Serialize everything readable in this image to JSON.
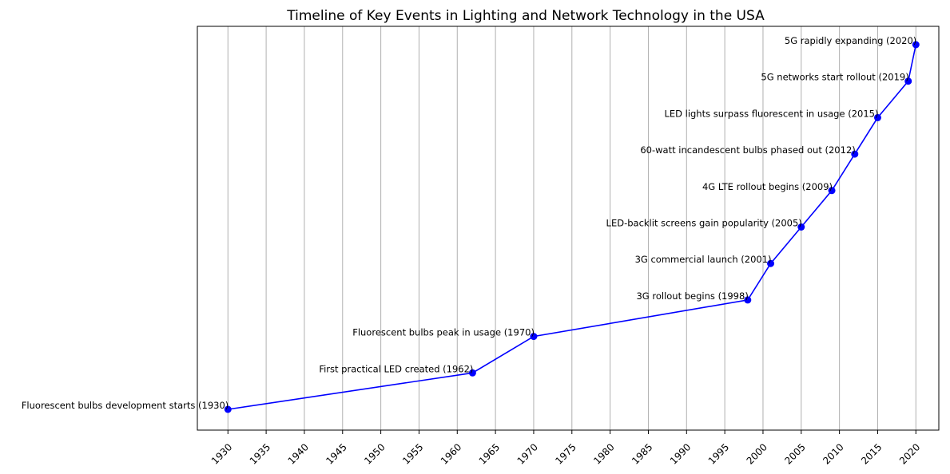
{
  "chart_data": {
    "type": "line",
    "title": "Timeline of Key Events in Lighting and Network Technology in the USA",
    "xlabel": "",
    "ylabel": "",
    "xlim": [
      1926,
      2023
    ],
    "x_ticks": [
      "1930",
      "1935",
      "1940",
      "1945",
      "1950",
      "1955",
      "1960",
      "1965",
      "1970",
      "1975",
      "1980",
      "1985",
      "1990",
      "1995",
      "2000",
      "2005",
      "2010",
      "2015",
      "2020"
    ],
    "grid": "vertical",
    "legend": "none",
    "line_color": "#0000ff",
    "grid_color": "#b0b0b0",
    "series": [
      {
        "points": [
          {
            "x": 1930,
            "y": 1,
            "label": "Fluorescent bulbs development starts (1930)"
          },
          {
            "x": 1962,
            "y": 2,
            "label": "First practical LED created (1962)"
          },
          {
            "x": 1970,
            "y": 3,
            "label": "Fluorescent bulbs peak in usage (1970)"
          },
          {
            "x": 1998,
            "y": 4,
            "label": "3G rollout begins (1998)"
          },
          {
            "x": 2001,
            "y": 5,
            "label": "3G commercial launch (2001)"
          },
          {
            "x": 2005,
            "y": 6,
            "label": "LED-backlit screens gain popularity (2005)"
          },
          {
            "x": 2009,
            "y": 7,
            "label": "4G LTE rollout begins (2009)"
          },
          {
            "x": 2012,
            "y": 8,
            "label": "60-watt incandescent bulbs phased out (2012)"
          },
          {
            "x": 2015,
            "y": 9,
            "label": "LED lights surpass fluorescent in usage (2015)"
          },
          {
            "x": 2019,
            "y": 10,
            "label": "5G networks start rollout (2019)"
          },
          {
            "x": 2020,
            "y": 11,
            "label": "5G rapidly expanding (2020)"
          }
        ]
      }
    ]
  }
}
